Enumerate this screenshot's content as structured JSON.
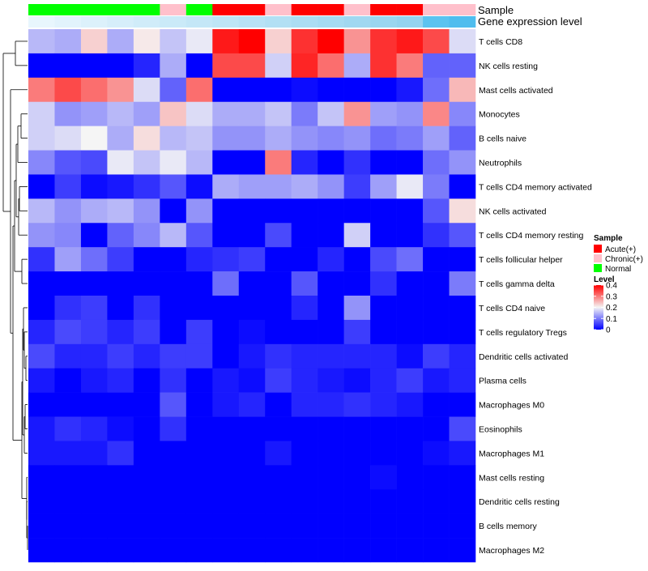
{
  "chart_data": {
    "type": "heatmap",
    "title": "",
    "annotation_labels": {
      "sample": "Sample",
      "gene_expression": "Gene expression level"
    },
    "sample_groups": [
      "Normal",
      "Normal",
      "Normal",
      "Normal",
      "Normal",
      "Chronic(+)",
      "Normal",
      "Acute(+)",
      "Acute(+)",
      "Chronic(+)",
      "Acute(+)",
      "Acute(+)",
      "Chronic(+)",
      "Acute(+)",
      "Acute(+)",
      "Chronic(+)",
      "Chronic(+)"
    ],
    "sample_colors": {
      "Acute(+)": "#ff0000",
      "Chronic(+)": "#ffc0cb",
      "Normal": "#00ff00"
    },
    "gene_expression_colors": [
      "#e8f6fd",
      "#e2f3fc",
      "#dcf1fb",
      "#d6eefa",
      "#d0ecf9",
      "#caeaf8",
      "#c4e7f7",
      "#bee5f6",
      "#b8e2f5",
      "#b2e0f4",
      "#acddf3",
      "#a6dbf2",
      "#a0d8f1",
      "#9ad6f0",
      "#94d3ef",
      "#5bc3f0",
      "#4fbdee"
    ],
    "legend": {
      "sample_title": "Sample",
      "sample_items": [
        "Acute(+)",
        "Chronic(+)",
        "Normal"
      ],
      "level_title": "Level",
      "level_ticks": [
        0,
        0.1,
        0.2,
        0.3,
        0.4
      ],
      "level_tick_labels": [
        "0",
        "0.1",
        "0.2",
        "0.3",
        "0.4"
      ]
    },
    "color_scale": {
      "min": 0,
      "max": 0.4,
      "low": "#0000ff",
      "mid": "#f5f5f5",
      "high": "#ff0000",
      "midpoint": 0.2
    },
    "rows": [
      "T cells CD8",
      "NK cells resting",
      "Mast cells activated",
      "Monocytes",
      "B cells naive",
      "Neutrophils",
      "T cells CD4 memory activated",
      "NK cells activated",
      "T cells CD4 memory resting",
      "T cells follicular helper",
      "T cells gamma delta",
      "T cells CD4 naive",
      "T cells regulatory  Tregs",
      "Dendritic cells activated",
      "Plasma cells",
      "Macrophages M0",
      "Eosinophils",
      "Macrophages M1",
      "Mast cells resting",
      "Dendritic cells resting",
      "B cells memory",
      "Macrophages M2"
    ],
    "values": [
      [
        0.15,
        0.14,
        0.23,
        0.14,
        0.21,
        0.16,
        0.19,
        0.38,
        0.4,
        0.23,
        0.36,
        0.4,
        0.28,
        0.36,
        0.38,
        0.34,
        0.18
      ],
      [
        0.0,
        0.0,
        0.0,
        0.0,
        0.03,
        0.14,
        0.0,
        0.34,
        0.34,
        0.17,
        0.37,
        0.31,
        0.14,
        0.36,
        0.3,
        0.08,
        0.08
      ],
      [
        0.3,
        0.34,
        0.31,
        0.28,
        0.18,
        0.08,
        0.31,
        0.0,
        0.0,
        0.0,
        0.01,
        0.0,
        0.0,
        0.0,
        0.02,
        0.09,
        0.25
      ],
      [
        0.17,
        0.12,
        0.13,
        0.15,
        0.13,
        0.24,
        0.18,
        0.14,
        0.14,
        0.16,
        0.1,
        0.16,
        0.28,
        0.13,
        0.12,
        0.29,
        0.11
      ],
      [
        0.17,
        0.18,
        0.2,
        0.14,
        0.22,
        0.15,
        0.16,
        0.12,
        0.12,
        0.14,
        0.12,
        0.11,
        0.12,
        0.09,
        0.1,
        0.13,
        0.08
      ],
      [
        0.11,
        0.07,
        0.06,
        0.19,
        0.16,
        0.19,
        0.15,
        0.0,
        0.0,
        0.3,
        0.03,
        0.0,
        0.04,
        0.0,
        0.0,
        0.09,
        0.12
      ],
      [
        0.0,
        0.05,
        0.01,
        0.02,
        0.04,
        0.07,
        0.01,
        0.14,
        0.13,
        0.13,
        0.14,
        0.12,
        0.05,
        0.13,
        0.19,
        0.1,
        0.0
      ],
      [
        0.15,
        0.12,
        0.14,
        0.15,
        0.12,
        0.0,
        0.12,
        0.0,
        0.0,
        0.0,
        0.0,
        0.0,
        0.0,
        0.0,
        0.0,
        0.07,
        0.22
      ],
      [
        0.12,
        0.11,
        0.0,
        0.08,
        0.11,
        0.15,
        0.07,
        0.0,
        0.0,
        0.06,
        0.0,
        0.0,
        0.17,
        0.0,
        0.0,
        0.04,
        0.07
      ],
      [
        0.04,
        0.13,
        0.09,
        0.05,
        0.0,
        0.0,
        0.03,
        0.04,
        0.05,
        0.0,
        0.0,
        0.03,
        0.0,
        0.06,
        0.09,
        0.0,
        0.0
      ],
      [
        0.0,
        0.0,
        0.0,
        0.0,
        0.0,
        0.0,
        0.0,
        0.09,
        0.0,
        0.0,
        0.07,
        0.0,
        0.0,
        0.04,
        0.0,
        0.0,
        0.1
      ],
      [
        0.0,
        0.04,
        0.05,
        0.0,
        0.04,
        0.0,
        0.0,
        0.0,
        0.0,
        0.0,
        0.03,
        0.0,
        0.12,
        0.0,
        0.0,
        0.0,
        0.0
      ],
      [
        0.03,
        0.06,
        0.05,
        0.03,
        0.05,
        0.0,
        0.05,
        0.0,
        0.01,
        0.0,
        0.0,
        0.0,
        0.05,
        0.0,
        0.0,
        0.0,
        0.0
      ],
      [
        0.06,
        0.03,
        0.03,
        0.05,
        0.03,
        0.05,
        0.05,
        0.0,
        0.02,
        0.04,
        0.03,
        0.03,
        0.03,
        0.03,
        0.01,
        0.05,
        0.03
      ],
      [
        0.02,
        0.0,
        0.02,
        0.03,
        0.0,
        0.04,
        0.0,
        0.02,
        0.01,
        0.05,
        0.03,
        0.02,
        0.01,
        0.03,
        0.05,
        0.02,
        0.03
      ],
      [
        0.0,
        0.0,
        0.0,
        0.0,
        0.0,
        0.07,
        0.0,
        0.02,
        0.03,
        0.0,
        0.03,
        0.03,
        0.04,
        0.03,
        0.02,
        0.0,
        0.0
      ],
      [
        0.02,
        0.04,
        0.03,
        0.01,
        0.0,
        0.04,
        0.0,
        0.0,
        0.0,
        0.0,
        0.0,
        0.0,
        0.0,
        0.0,
        0.0,
        0.0,
        0.06
      ],
      [
        0.02,
        0.02,
        0.02,
        0.04,
        0.0,
        0.0,
        0.0,
        0.0,
        0.0,
        0.02,
        0.0,
        0.0,
        0.0,
        0.0,
        0.0,
        0.01,
        0.02
      ],
      [
        0.0,
        0.0,
        0.0,
        0.0,
        0.0,
        0.0,
        0.0,
        0.0,
        0.0,
        0.0,
        0.0,
        0.0,
        0.0,
        0.01,
        0.0,
        0.0,
        0.0
      ],
      [
        0.0,
        0.0,
        0.0,
        0.0,
        0.0,
        0.0,
        0.0,
        0.0,
        0.0,
        0.0,
        0.0,
        0.0,
        0.0,
        0.0,
        0.0,
        0.0,
        0.0
      ],
      [
        0.0,
        0.0,
        0.0,
        0.0,
        0.0,
        0.0,
        0.0,
        0.0,
        0.0,
        0.0,
        0.0,
        0.0,
        0.0,
        0.0,
        0.0,
        0.0,
        0.0
      ],
      [
        0.0,
        0.0,
        0.0,
        0.0,
        0.0,
        0.0,
        0.0,
        0.0,
        0.0,
        0.0,
        0.0,
        0.0,
        0.0,
        0.0,
        0.0,
        0.0,
        0.0
      ]
    ]
  }
}
